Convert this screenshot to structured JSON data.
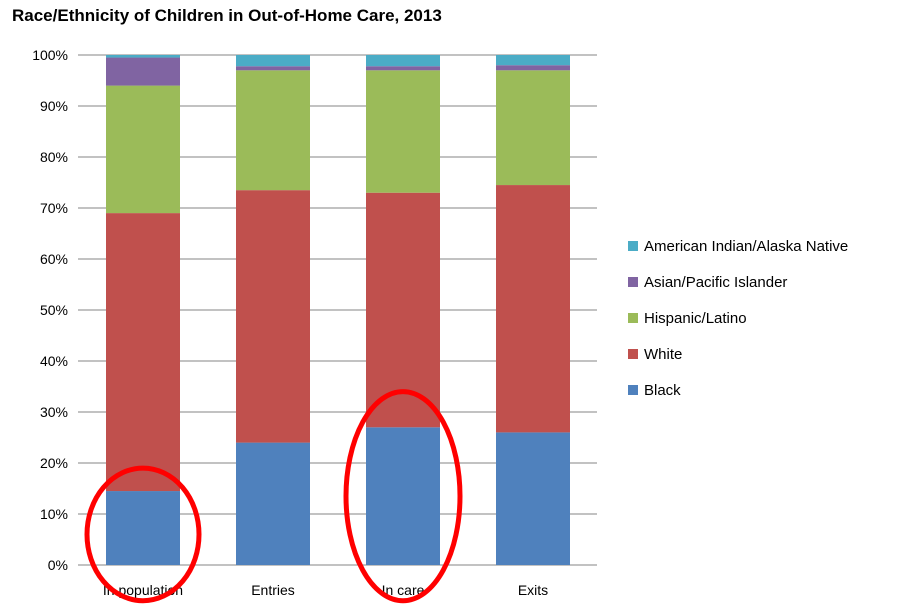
{
  "chart_data": {
    "type": "bar",
    "stacked": true,
    "title": "Race/Ethnicity of Children in Out-of-Home Care, 2013",
    "categories": [
      "In population",
      "Entries",
      "In care",
      "Exits"
    ],
    "yticks": [
      "0%",
      "10%",
      "20%",
      "30%",
      "40%",
      "50%",
      "60%",
      "70%",
      "80%",
      "90%",
      "100%"
    ],
    "ylim": [
      0,
      100
    ],
    "grid": true,
    "legend_position": "right",
    "series": [
      {
        "name": "Black",
        "color": "#4F81BD",
        "values": [
          14.5,
          24,
          27,
          26
        ]
      },
      {
        "name": "White",
        "color": "#C0504D",
        "values": [
          54.5,
          49.5,
          46,
          48.5
        ]
      },
      {
        "name": "Hispanic/Latino",
        "color": "#9BBB59",
        "values": [
          25,
          23.5,
          24,
          22.5
        ]
      },
      {
        "name": "Asian/Pacific Islander",
        "color": "#8064A2",
        "values": [
          5.5,
          0.8,
          0.8,
          1
        ]
      },
      {
        "name": "American Indian/Alaska Native",
        "color": "#4BACC6",
        "values": [
          0.5,
          2.2,
          2.2,
          2
        ]
      }
    ],
    "annotations": [
      {
        "shape": "ellipse",
        "color": "#FF0000",
        "category": "In population",
        "y_range": [
          -7,
          19
        ]
      },
      {
        "shape": "ellipse",
        "color": "#FF0000",
        "category": "In care",
        "y_range": [
          -7,
          34
        ]
      }
    ]
  }
}
